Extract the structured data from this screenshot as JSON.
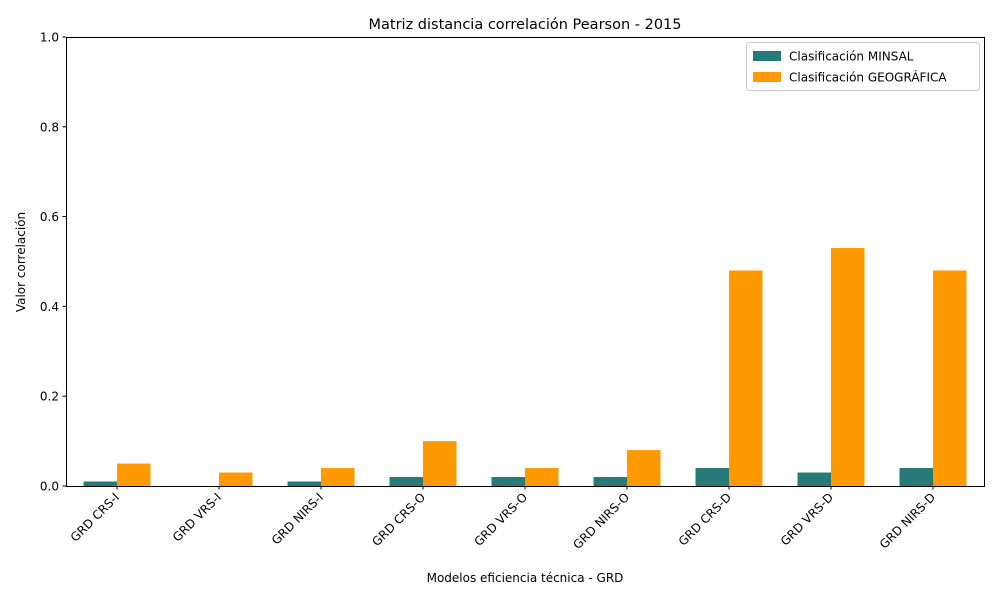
{
  "chart_data": {
    "type": "bar",
    "title": "Matriz distancia correlación Pearson - 2015",
    "xlabel": "Modelos eficiencia técnica - GRD",
    "ylabel": "Valor correlación",
    "ylim": [
      0,
      1.0
    ],
    "yticks": [
      "0.0",
      "0.2",
      "0.4",
      "0.6",
      "0.8",
      "1.0"
    ],
    "grid": false,
    "legend_position": "top-right",
    "categories": [
      "GRD CRS-I",
      "GRD VRS-I",
      "GRD NIRS-I",
      "GRD CRS-O",
      "GRD VRS-O",
      "GRD NIRS-O",
      "GRD CRS-D",
      "GRD VRS-D",
      "GRD NIRS-D"
    ],
    "series": [
      {
        "name": "Clasificación MINSAL",
        "color": "#267b78",
        "values": [
          0.01,
          0.0,
          0.01,
          0.02,
          0.02,
          0.02,
          0.04,
          0.03,
          0.04
        ]
      },
      {
        "name": "Clasificación GEOGRÁFICA",
        "color": "#ff9900",
        "values": [
          0.05,
          0.03,
          0.04,
          0.1,
          0.04,
          0.08,
          0.48,
          0.53,
          0.48
        ]
      }
    ]
  }
}
